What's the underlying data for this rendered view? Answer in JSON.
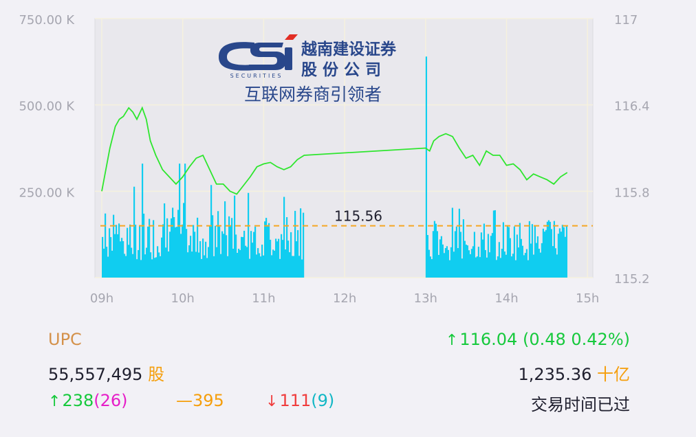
{
  "chart_data": {
    "type": "line+bar",
    "title": "",
    "x_ticks": [
      "09h",
      "10h",
      "11h",
      "12h",
      "13h",
      "14h",
      "15h"
    ],
    "y_left_ticks": [
      "750.00 K",
      "500.00 K",
      "250.00 K"
    ],
    "y_left_range": [
      0,
      750000
    ],
    "y_right_ticks": [
      "117",
      "116.4",
      "115.8",
      "115.2"
    ],
    "y_right_range": [
      115.2,
      117
    ],
    "reference_value": 115.56,
    "reference_label": "115.56",
    "grid": true,
    "price_series": {
      "color": "#2ee62e",
      "points": [
        [
          "09:00",
          115.8
        ],
        [
          "09:03",
          115.95
        ],
        [
          "09:06",
          116.1
        ],
        [
          "09:10",
          116.25
        ],
        [
          "09:13",
          116.3
        ],
        [
          "09:16",
          116.32
        ],
        [
          "09:20",
          116.38
        ],
        [
          "09:23",
          116.35
        ],
        [
          "09:26",
          116.3
        ],
        [
          "09:30",
          116.38
        ],
        [
          "09:33",
          116.3
        ],
        [
          "09:36",
          116.15
        ],
        [
          "09:40",
          116.05
        ],
        [
          "09:45",
          115.95
        ],
        [
          "09:50",
          115.9
        ],
        [
          "09:55",
          115.85
        ],
        [
          "10:00",
          115.9
        ],
        [
          "10:05",
          115.97
        ],
        [
          "10:10",
          116.03
        ],
        [
          "10:15",
          116.05
        ],
        [
          "10:20",
          115.95
        ],
        [
          "10:25",
          115.85
        ],
        [
          "10:30",
          115.85
        ],
        [
          "10:35",
          115.8
        ],
        [
          "10:40",
          115.78
        ],
        [
          "10:45",
          115.84
        ],
        [
          "10:50",
          115.9
        ],
        [
          "10:55",
          115.97
        ],
        [
          "11:00",
          115.99
        ],
        [
          "11:05",
          116.0
        ],
        [
          "11:10",
          115.97
        ],
        [
          "11:15",
          115.95
        ],
        [
          "11:20",
          115.97
        ],
        [
          "11:25",
          116.02
        ],
        [
          "11:30",
          116.05
        ],
        [
          "13:00",
          116.1
        ],
        [
          "13:03",
          116.08
        ],
        [
          "13:06",
          116.15
        ],
        [
          "13:10",
          116.18
        ],
        [
          "13:15",
          116.2
        ],
        [
          "13:20",
          116.18
        ],
        [
          "13:25",
          116.1
        ],
        [
          "13:30",
          116.03
        ],
        [
          "13:35",
          116.05
        ],
        [
          "13:40",
          115.98
        ],
        [
          "13:45",
          116.08
        ],
        [
          "13:50",
          116.05
        ],
        [
          "13:55",
          116.05
        ],
        [
          "14:00",
          115.98
        ],
        [
          "14:05",
          115.99
        ],
        [
          "14:10",
          115.95
        ],
        [
          "14:15",
          115.88
        ],
        [
          "14:20",
          115.92
        ],
        [
          "14:25",
          115.9
        ],
        [
          "14:30",
          115.88
        ],
        [
          "14:35",
          115.85
        ],
        [
          "14:40",
          115.9
        ],
        [
          "14:45",
          115.93
        ]
      ]
    },
    "volume_series": {
      "color": "#10cdf0",
      "morning": {
        "start": "09:00",
        "end": "11:30",
        "typical_range": [
          50000,
          280000
        ],
        "peak": 330000
      },
      "afternoon": {
        "start": "13:00",
        "end": "14:45",
        "spike": 640000,
        "typical_range": [
          50000,
          250000
        ]
      }
    }
  },
  "watermark": {
    "logo_text": "CSi",
    "logo_subtext": "SECURITIES",
    "company_line1": "越南建设证券",
    "company_line2": "股 份 公 司",
    "slogan": "互联网券商引领者"
  },
  "info": {
    "index_name": "UPC",
    "change": {
      "value": "116.04",
      "detail": "(0.48 0.42%)"
    },
    "volume": {
      "value": "55,557,495",
      "unit": "股"
    },
    "turnover": {
      "value": "1,235.36",
      "unit": "十亿"
    },
    "advance": {
      "count": "238",
      "ceiling": "(26)"
    },
    "unchanged": {
      "symbol": "—",
      "count": "395"
    },
    "decline": {
      "count": "111",
      "floor": "(9)"
    },
    "status": "交易时间已过"
  },
  "colors": {
    "plot_background": "#e9e8ed",
    "grid": "#f6f1de",
    "price_line": "#2ee62e",
    "volume": "#10cdf0",
    "reference_line": "#f5a623",
    "up": "#16c93c",
    "down": "#f03c3c",
    "unchanged": "#f59e0b",
    "logo_navy": "#1f3f86"
  }
}
